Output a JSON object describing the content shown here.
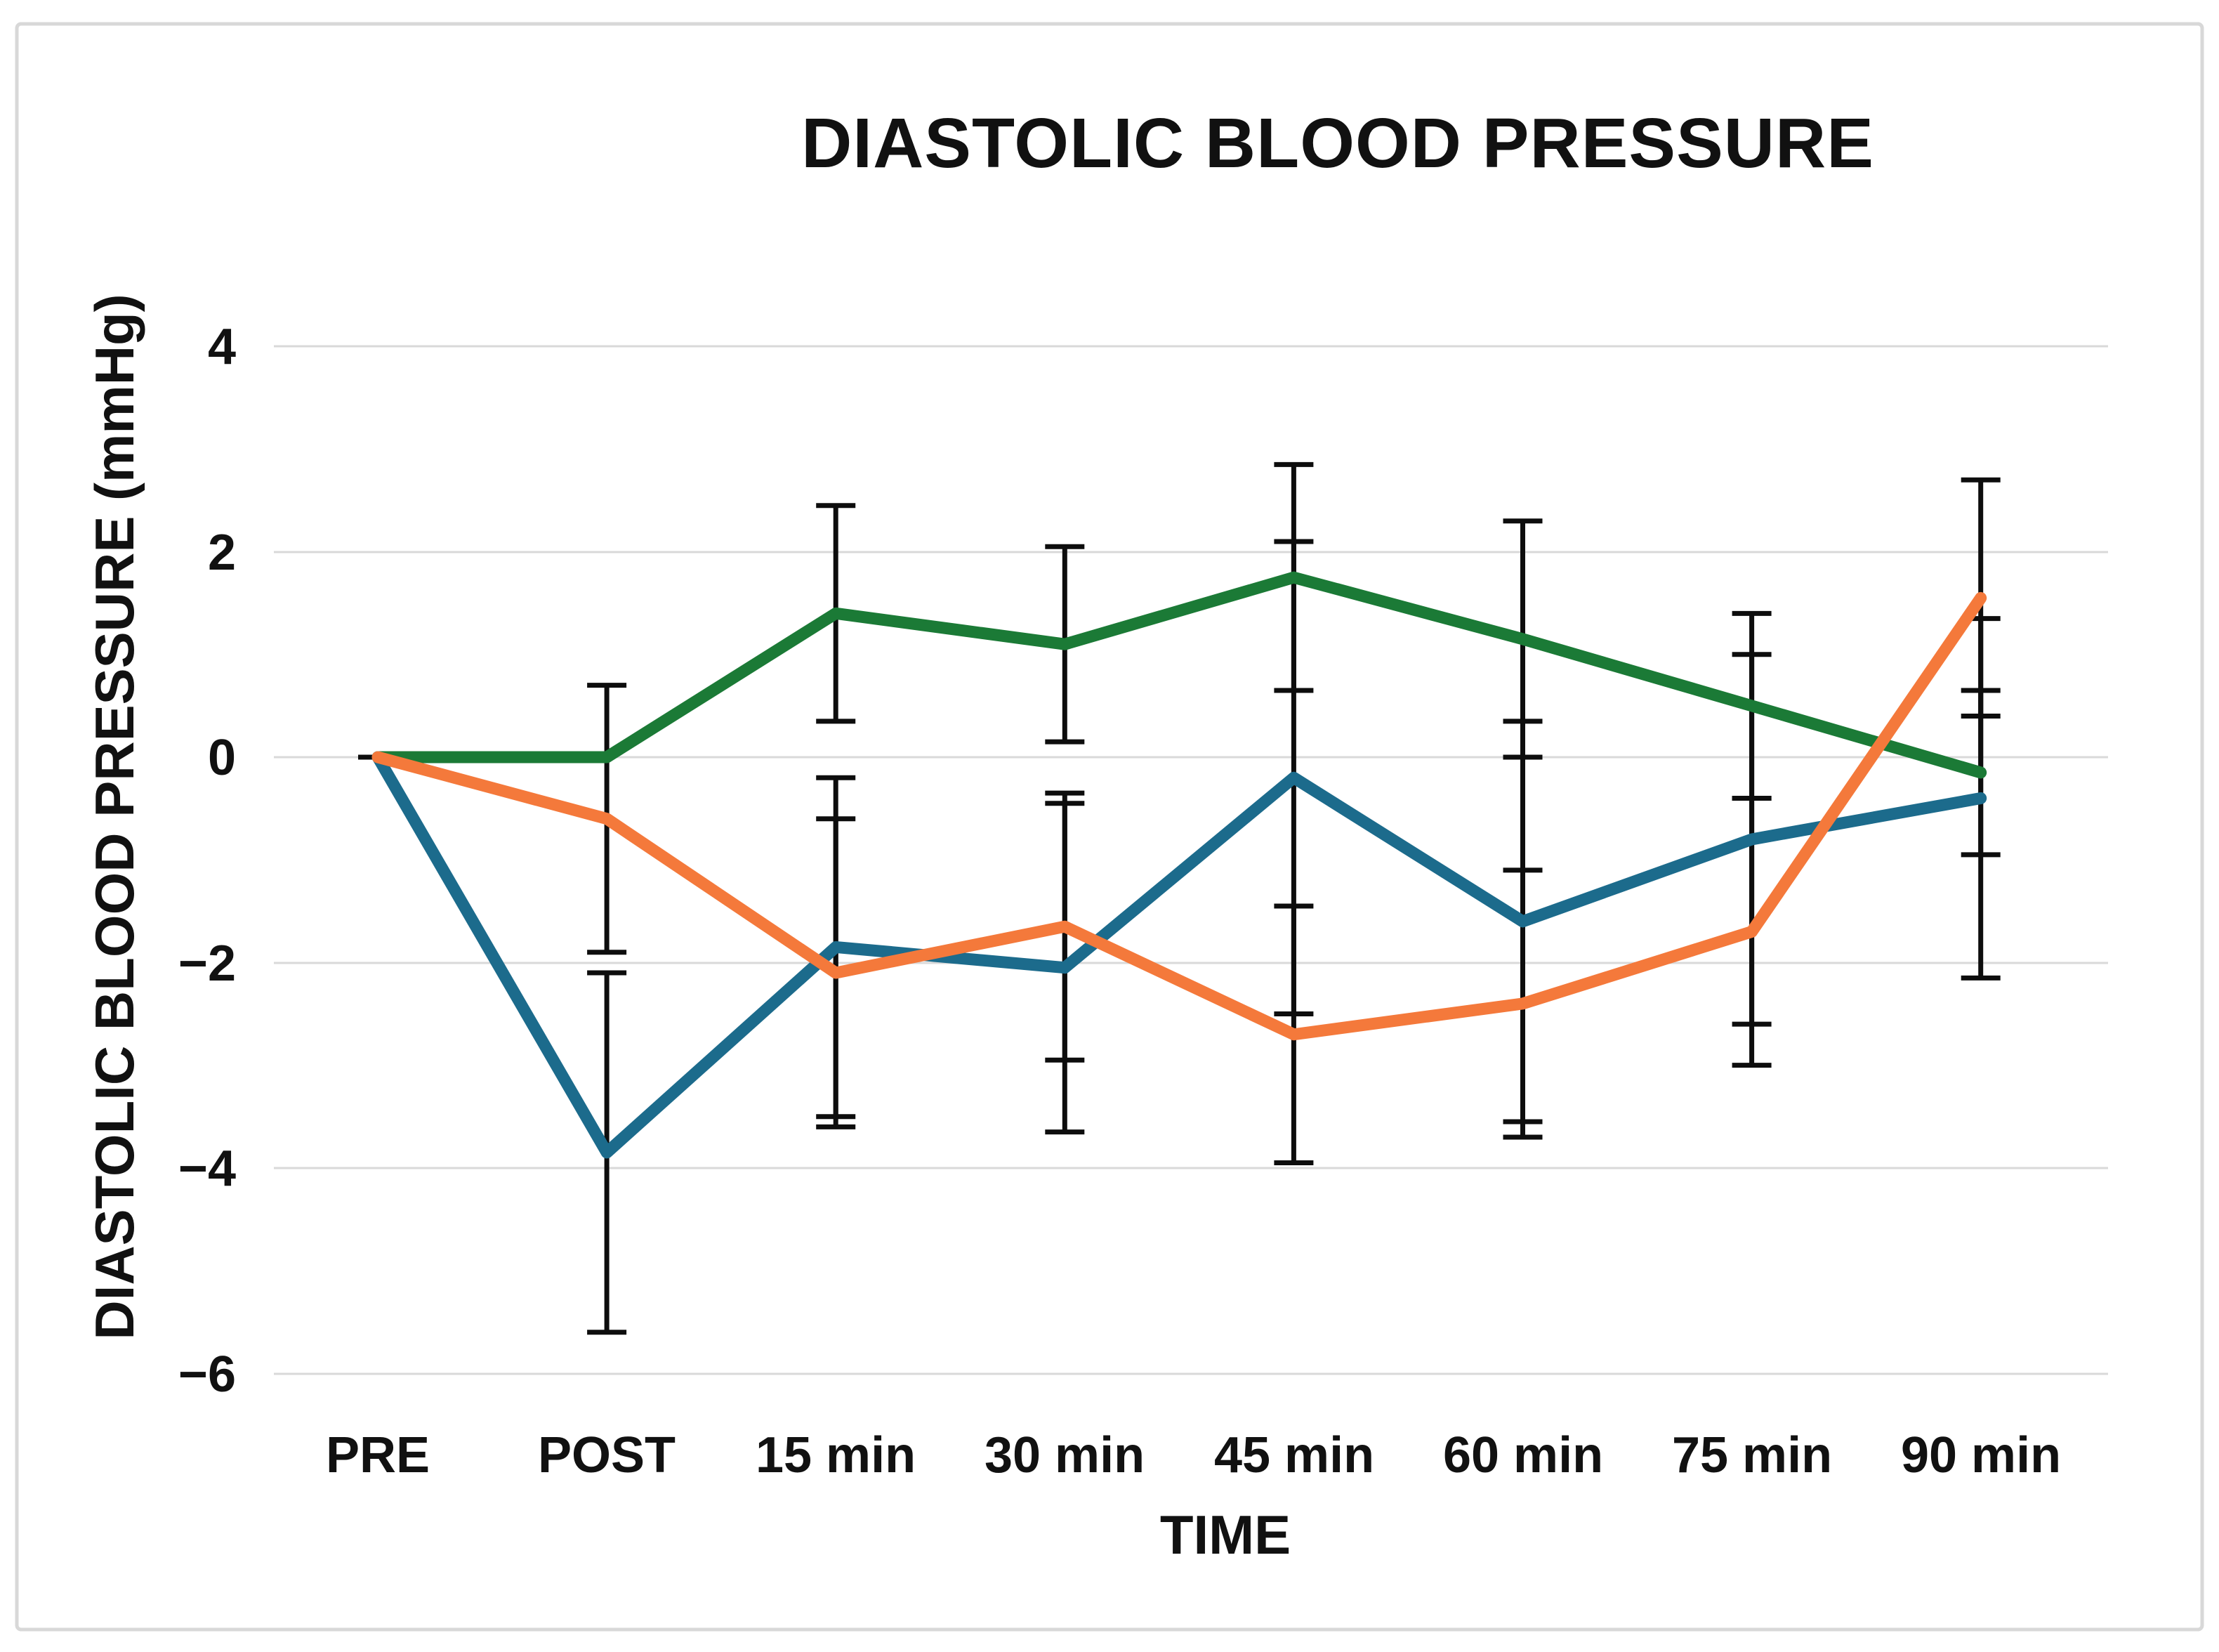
{
  "chart_data": {
    "type": "line",
    "title": "DIASTOLIC BLOOD PRESSURE",
    "xlabel": "TIME",
    "ylabel": "DIASTOLIC  BLOOD PRESSURE (mmHg)",
    "categories": [
      "PRE",
      "POST",
      "15 min",
      "30 min",
      "45 min",
      "60 min",
      "75 min",
      "90 min"
    ],
    "yticks": [
      4,
      2,
      0,
      -2,
      -4,
      -6
    ],
    "ytick_labels": [
      "4",
      "2",
      "0",
      "−2",
      "−4",
      "−6"
    ],
    "ylim": [
      -6.85,
      4.6
    ],
    "grid": "horizontal",
    "gridline_color": "#d9d9d9",
    "error_bar_color": "#0d0d0d",
    "legend": "none",
    "series": [
      {
        "name": "green",
        "color": "#1b7a36",
        "values": [
          0,
          0,
          1.4,
          1.1,
          1.75,
          1.15,
          0.5,
          -0.15
        ],
        "errors": [
          0,
          null,
          1.05,
          0.95,
          1.1,
          1.15,
          0.9,
          0.8
        ]
      },
      {
        "name": "blue",
        "color": "#1c6b8c",
        "values": [
          0,
          -3.85,
          -1.85,
          -2.05,
          -0.2,
          -1.6,
          -0.8,
          -0.4
        ],
        "errors": [
          null,
          1.75,
          1.65,
          1.6,
          2.3,
          1.95,
          1.8,
          1.75
        ]
      },
      {
        "name": "orange",
        "color": "#f4793b",
        "values": [
          0,
          -0.6,
          -2.1,
          -1.65,
          -2.7,
          -2.4,
          -1.7,
          1.55
        ],
        "errors": [
          null,
          1.3,
          1.5,
          1.3,
          1.25,
          1.3,
          1.3,
          1.15
        ]
      }
    ]
  }
}
